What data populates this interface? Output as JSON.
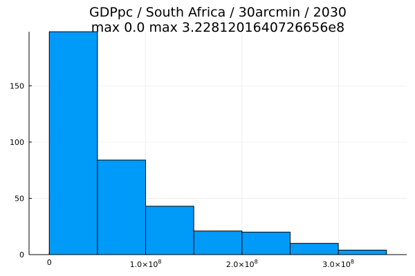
{
  "chart_data": {
    "type": "bar",
    "title_lines": [
      "GDPpc / South Africa / 30arcmin / 2030",
      "max 0.0  max 3.2281201640726656e8"
    ],
    "bins": [
      {
        "x0": 0,
        "x1": 50000000,
        "count": 198
      },
      {
        "x0": 50000000,
        "x1": 100000000,
        "count": 84
      },
      {
        "x0": 100000000,
        "x1": 150000000,
        "count": 43
      },
      {
        "x0": 150000000,
        "x1": 200000000,
        "count": 21
      },
      {
        "x0": 200000000,
        "x1": 250000000,
        "count": 20
      },
      {
        "x0": 250000000,
        "x1": 300000000,
        "count": 10
      },
      {
        "x0": 300000000,
        "x1": 350000000,
        "count": 4
      }
    ],
    "xlim": [
      -21000000,
      371000000
    ],
    "ylim": [
      0,
      198
    ],
    "x_ticks": [
      {
        "value": 0,
        "label": "0",
        "exponent": ""
      },
      {
        "value": 100000000,
        "label": "1.0×10",
        "exponent": "8"
      },
      {
        "value": 200000000,
        "label": "2.0×10",
        "exponent": "8"
      },
      {
        "value": 300000000,
        "label": "3.0×10",
        "exponent": "8"
      }
    ],
    "y_ticks": [
      {
        "value": 0,
        "label": "0"
      },
      {
        "value": 50,
        "label": "50"
      },
      {
        "value": 100,
        "label": "100"
      },
      {
        "value": 150,
        "label": "150"
      }
    ],
    "grid": true,
    "legend": "none",
    "bar_color": "#009af9",
    "edge_color": "#000000"
  }
}
